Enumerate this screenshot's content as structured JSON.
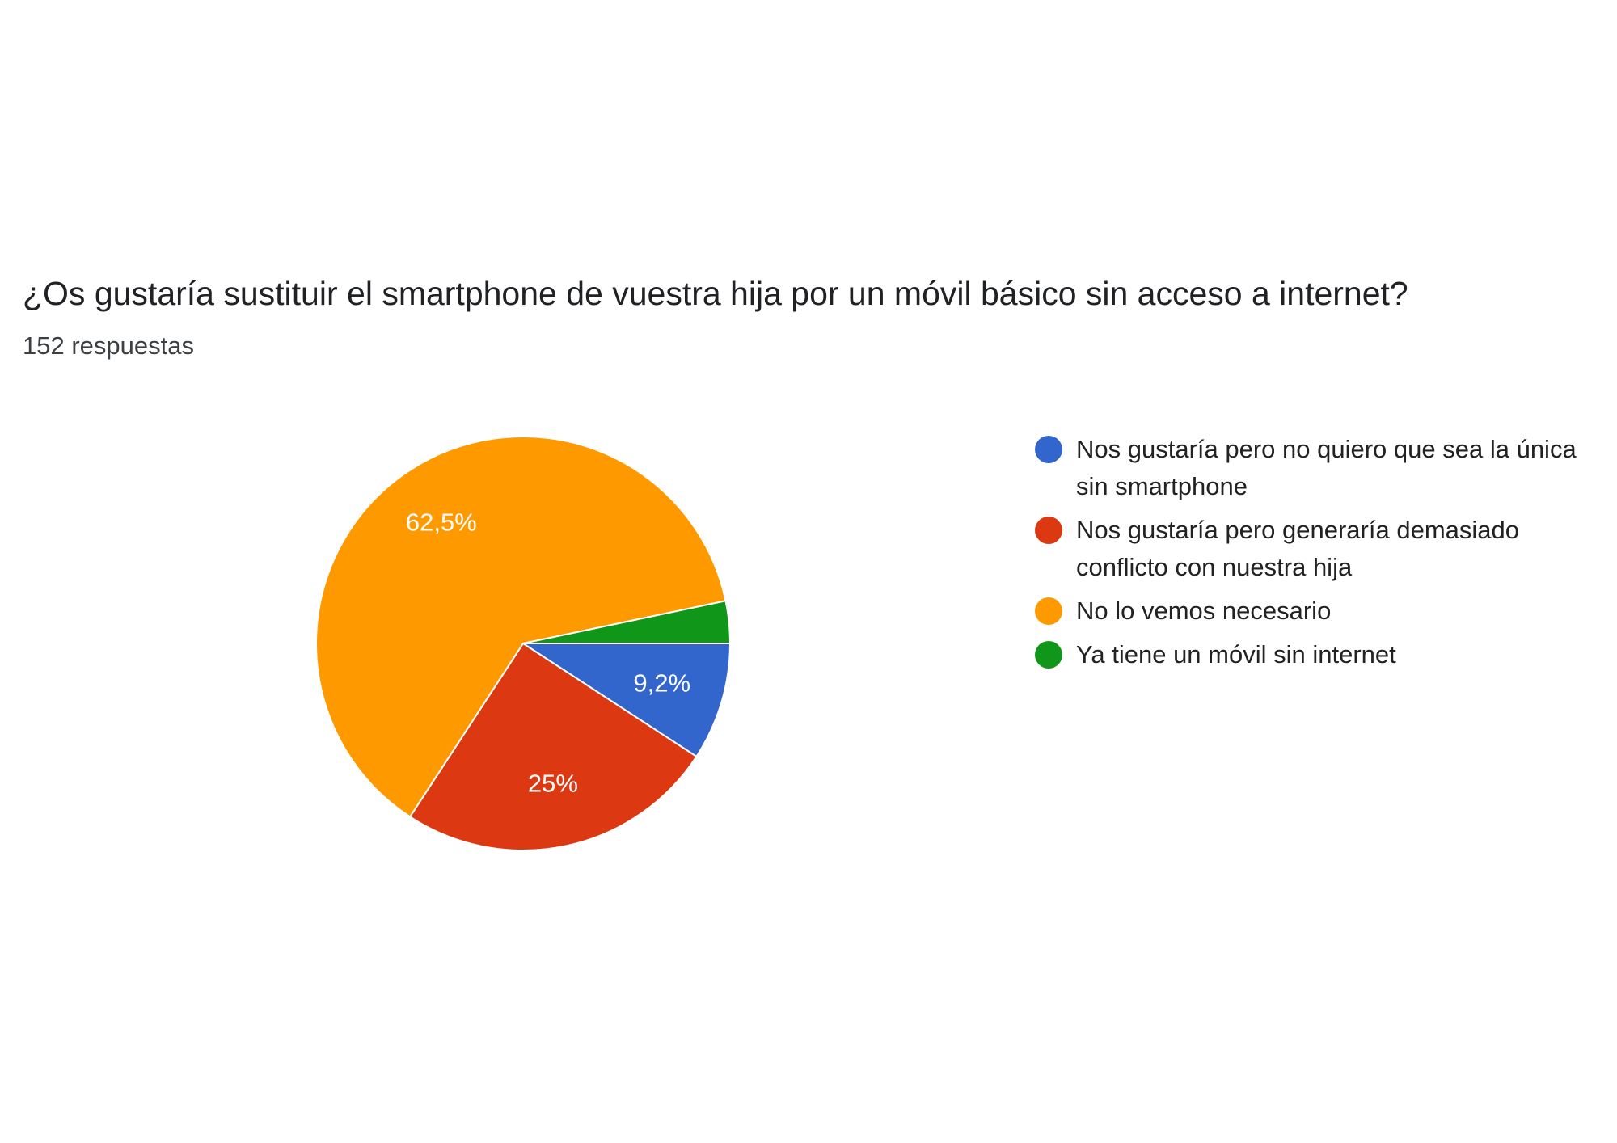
{
  "chart_data": {
    "type": "pie",
    "title": "¿Os gustaría sustituir el smartphone de vuestra hija por un móvil básico sin acceso a internet?",
    "subtitle": "152 respuestas",
    "categories": [
      "Nos gustaría pero no quiero que sea la única sin smartphone",
      "Nos gustaría pero generaría demasiado conflicto con nuestra hija",
      "No lo vemos necesario",
      "Ya tiene un móvil sin internet"
    ],
    "values": [
      9.2,
      25,
      62.5,
      3.3
    ],
    "value_labels": [
      "9,2%",
      "25%",
      "62,5%",
      null
    ],
    "colors": [
      "#3366cc",
      "#dc3912",
      "#ff9900",
      "#109618"
    ],
    "legend": "right"
  }
}
